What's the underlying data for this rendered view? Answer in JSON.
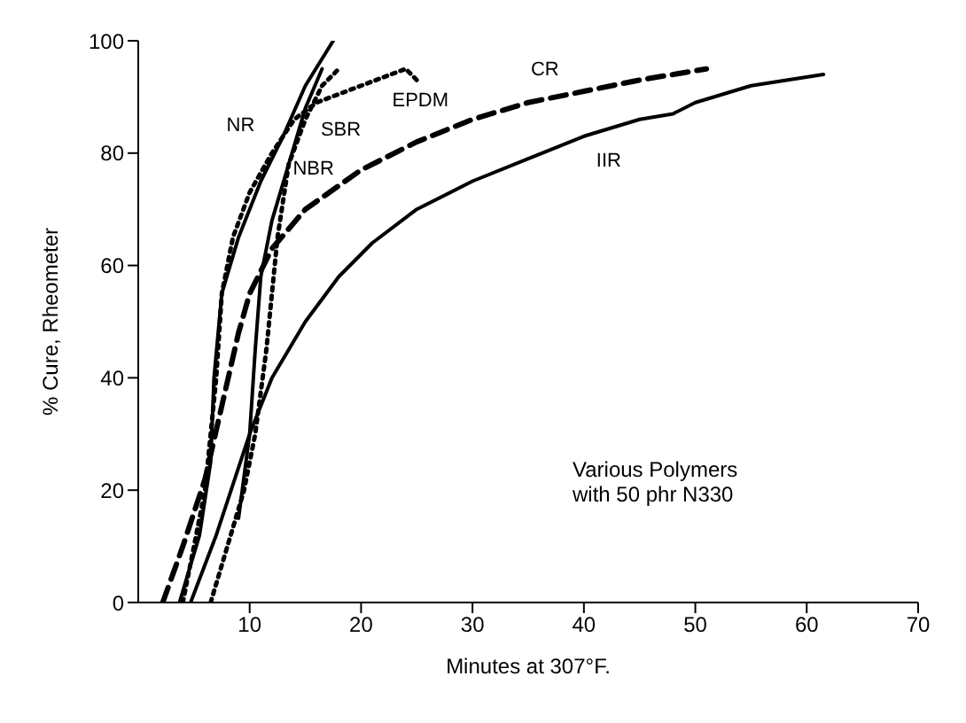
{
  "chart_data": {
    "type": "line",
    "xlabel": "Minutes at 307°F.",
    "ylabel": "% Cure, Rheometer",
    "xlim": [
      0,
      70
    ],
    "xticks": [
      10,
      20,
      30,
      40,
      50,
      60,
      70
    ],
    "ylim": [
      0,
      100
    ],
    "yticks": [
      0,
      20,
      40,
      60,
      80,
      100
    ],
    "grid": false,
    "legend": false,
    "marker": "none",
    "series": [
      {
        "name": "NR",
        "color": "#000000",
        "line_style": "solid",
        "x": [
          3.7,
          5.5,
          6.5,
          6.8,
          7.5,
          9,
          11,
          13,
          15,
          17.5
        ],
        "values": [
          0,
          12,
          25,
          40,
          55,
          65,
          75,
          83,
          92,
          100
        ]
      },
      {
        "name": "NBR",
        "color": "#000000",
        "line_style": "solid",
        "x": [
          9,
          10,
          10.5,
          11,
          12,
          13.5,
          15,
          16.5
        ],
        "values": [
          15,
          30,
          45,
          58,
          68,
          78,
          88,
          95
        ]
      },
      {
        "name": "SBR",
        "color": "#000000",
        "line_style": "dotted",
        "x": [
          6.5,
          8,
          9.5,
          10.5,
          11.5,
          12,
          12.5,
          13.5,
          15,
          16.5,
          18
        ],
        "values": [
          0,
          10,
          20,
          30,
          45,
          55,
          65,
          78,
          86,
          92,
          95
        ]
      },
      {
        "name": "EPDM",
        "color": "#000000",
        "line_style": "dotted",
        "x": [
          4,
          6,
          7,
          7.5,
          8.5,
          10,
          12,
          14,
          16,
          20,
          24,
          25
        ],
        "values": [
          0,
          20,
          40,
          55,
          65,
          73,
          80,
          86,
          89,
          92,
          95,
          93
        ]
      },
      {
        "name": "CR",
        "color": "#000000",
        "line_style": "dashed",
        "x": [
          2.2,
          4,
          6,
          7.5,
          9,
          10,
          12,
          15,
          20,
          25,
          30,
          35,
          40,
          45,
          51
        ],
        "values": [
          0,
          10,
          22,
          35,
          48,
          55,
          63,
          70,
          77,
          82,
          86,
          89,
          91,
          93,
          95
        ]
      },
      {
        "name": "IIR",
        "color": "#000000",
        "line_style": "solid",
        "x": [
          4.7,
          7,
          10,
          12,
          15,
          18,
          21,
          25,
          30,
          35,
          40,
          45,
          48,
          50,
          55,
          61.5
        ],
        "values": [
          0,
          12,
          30,
          40,
          50,
          58,
          64,
          70,
          75,
          79,
          83,
          86,
          87,
          89,
          92,
          94
        ]
      }
    ],
    "annotations": [
      "Various Polymers\nwith 50 phr N330"
    ]
  }
}
